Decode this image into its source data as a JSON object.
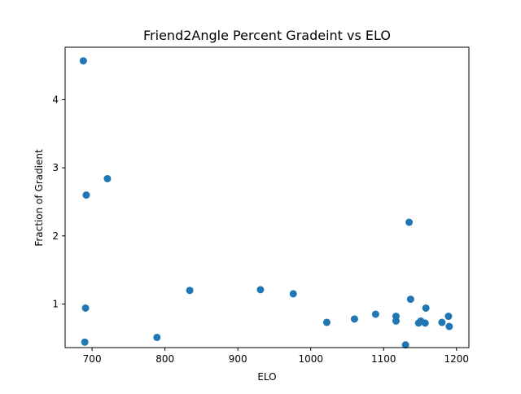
{
  "chart_data": {
    "type": "scatter",
    "title": "Friend2Angle Percent Gradeint vs ELO",
    "xlabel": "ELO",
    "ylabel": "Fraction of Gradient",
    "xlim": [
      663,
      1217
    ],
    "ylim": [
      0.36,
      4.77
    ],
    "xticks": [
      700,
      800,
      900,
      1000,
      1100,
      1200
    ],
    "yticks": [
      1,
      2,
      3,
      4
    ],
    "grid": false,
    "marker_color": "#1f77b4",
    "points": [
      {
        "x": 688,
        "y": 4.57
      },
      {
        "x": 721,
        "y": 2.84
      },
      {
        "x": 692,
        "y": 2.6
      },
      {
        "x": 691,
        "y": 0.94
      },
      {
        "x": 690,
        "y": 0.44
      },
      {
        "x": 789,
        "y": 0.51
      },
      {
        "x": 834,
        "y": 1.2
      },
      {
        "x": 931,
        "y": 1.21
      },
      {
        "x": 976,
        "y": 1.15
      },
      {
        "x": 1022,
        "y": 0.73
      },
      {
        "x": 1060,
        "y": 0.78
      },
      {
        "x": 1089,
        "y": 0.85
      },
      {
        "x": 1117,
        "y": 0.82
      },
      {
        "x": 1117,
        "y": 0.75
      },
      {
        "x": 1130,
        "y": 0.4
      },
      {
        "x": 1135,
        "y": 2.2
      },
      {
        "x": 1137,
        "y": 1.07
      },
      {
        "x": 1148,
        "y": 0.72
      },
      {
        "x": 1151,
        "y": 0.75
      },
      {
        "x": 1157,
        "y": 0.72
      },
      {
        "x": 1158,
        "y": 0.94
      },
      {
        "x": 1180,
        "y": 0.73
      },
      {
        "x": 1189,
        "y": 0.82
      },
      {
        "x": 1190,
        "y": 0.67
      }
    ]
  }
}
